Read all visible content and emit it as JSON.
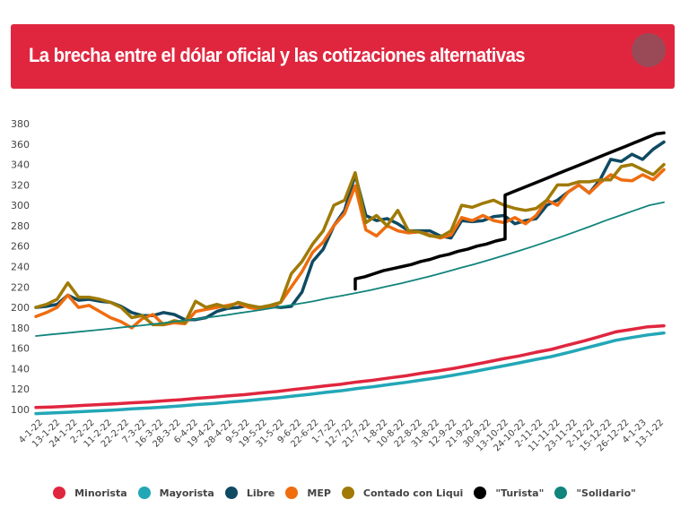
{
  "header": {
    "title": "La brecha entre el dólar oficial y las cotizaciones alternativas"
  },
  "colors": {
    "header_bg": "#e0263f",
    "header_circle": "#9a4a57"
  },
  "chart_data": {
    "type": "line",
    "title": "La brecha entre el dólar oficial y las cotizaciones alternativas",
    "xlabel": "",
    "ylabel": "",
    "ylim": [
      100,
      380
    ],
    "yticks": [
      100,
      120,
      140,
      160,
      180,
      200,
      220,
      240,
      260,
      280,
      300,
      320,
      340,
      360,
      380
    ],
    "grid": false,
    "legend_position": "bottom",
    "categories": [
      "4-1-22",
      "13-1-22",
      "24-1-22",
      "2-2-22",
      "11-2-22",
      "22-2-22",
      "7-3-22",
      "16-3-22",
      "28-3-22",
      "6-4-22",
      "19-4-22",
      "28-4-22",
      "9-5-22",
      "19-5-22",
      "31-5-22",
      "9-6-22",
      "22-6-22",
      "1-7-22",
      "12-7-22",
      "21-7-22",
      "1-8-22",
      "10-8-22",
      "22-8-22",
      "31-8-22",
      "12-9-22",
      "21-9-22",
      "30-9-22",
      "13-10-22",
      "24-10-22",
      "2-11-22",
      "11-11-22",
      "23-11-22",
      "2-12-22",
      "15-12-22",
      "26-12-22",
      "4-1-23",
      "13-1-22"
    ],
    "series": [
      {
        "name": "Minorista",
        "color": "#e0263f",
        "width": 3.5,
        "values": [
          102,
          102.5,
          103.2,
          104,
          104.8,
          105.6,
          106.6,
          107.4,
          108.6,
          109.6,
          111,
          112,
          113.4,
          114.6,
          116.2,
          117.6,
          119.6,
          121.2,
          123.2,
          124.8,
          127,
          128.8,
          131,
          133,
          135.6,
          137.8,
          140.4,
          143.4,
          146.4,
          149.6,
          152.4,
          155.8,
          158.8,
          163,
          167,
          171.4,
          176,
          178.5,
          181,
          182
        ]
      },
      {
        "name": "Mayorista",
        "color": "#22a7b7",
        "width": 3.5,
        "values": [
          96,
          96.6,
          97.3,
          98,
          98.8,
          99.6,
          100.6,
          101.4,
          102.5,
          103.5,
          104.8,
          105.8,
          107.2,
          108.4,
          110,
          111.4,
          113.2,
          114.8,
          116.8,
          118.4,
          120.6,
          122.4,
          124.6,
          126.6,
          129,
          131.2,
          133.8,
          136.6,
          139.6,
          142.6,
          145.6,
          148.8,
          151.8,
          155.6,
          159.6,
          163.6,
          167.8,
          170.5,
          173,
          175
        ]
      },
      {
        "name": "Libre",
        "color": "#0f4a63",
        "width": 3.5,
        "values": [
          200,
          201,
          203,
          212,
          207,
          208,
          206,
          205,
          201,
          195,
          192,
          192,
          195,
          193,
          188,
          188,
          190,
          196,
          199,
          200,
          202,
          200,
          201,
          200,
          201,
          215,
          245,
          257,
          280,
          295,
          330,
          290,
          285,
          287,
          282,
          275,
          275,
          275,
          270,
          268,
          285,
          284,
          285,
          289,
          290,
          282,
          285,
          287,
          300,
          305,
          313,
          320,
          312,
          325,
          345,
          343,
          350,
          345,
          355,
          362
        ]
      },
      {
        "name": "MEP",
        "color": "#ef6c0f",
        "width": 3.5,
        "values": [
          191,
          195,
          200,
          212,
          200,
          202,
          196,
          190,
          186,
          180,
          189,
          193,
          183,
          185,
          184,
          196,
          198,
          200,
          202,
          204,
          200,
          198,
          200,
          205,
          220,
          235,
          254,
          264,
          280,
          292,
          319,
          276,
          270,
          280,
          275,
          273,
          274,
          271,
          268,
          271,
          288,
          285,
          290,
          285,
          283,
          288,
          282,
          290,
          305,
          300,
          313,
          320,
          312,
          322,
          330,
          325,
          324,
          330,
          325,
          335
        ]
      },
      {
        "name": "Contado con Liqui",
        "color": "#a07a05",
        "width": 3.5,
        "values": [
          200,
          203,
          208,
          224,
          210,
          210,
          208,
          205,
          200,
          190,
          192,
          183,
          183,
          187,
          185,
          206,
          200,
          203,
          200,
          205,
          202,
          200,
          202,
          205,
          233,
          245,
          262,
          275,
          300,
          305,
          332,
          283,
          290,
          280,
          295,
          275,
          274,
          270,
          269,
          275,
          300,
          298,
          302,
          305,
          300,
          297,
          295,
          297,
          305,
          320,
          320,
          323,
          323,
          325,
          325,
          338,
          340,
          335,
          330,
          340
        ]
      },
      {
        "name": "\"Turista\"",
        "color": "#000000",
        "width": 3.5,
        "start_category_fraction": 0.509,
        "values": [
          218,
          228,
          230,
          233,
          236,
          238,
          240,
          242,
          245,
          247,
          250,
          252,
          255,
          257,
          260,
          262,
          265,
          267,
          310,
          313,
          316,
          319,
          322,
          325,
          328,
          331,
          334,
          337,
          340,
          343,
          346,
          349,
          352,
          355,
          358,
          361,
          364,
          367,
          370,
          371
        ]
      },
      {
        "name": "\"Solidario\"",
        "color": "#11847c",
        "width": 1.8,
        "values": [
          172,
          173.5,
          174.8,
          176.2,
          177.6,
          179,
          180.6,
          182,
          183.6,
          185.2,
          187,
          188.6,
          190.6,
          192.4,
          194.6,
          196.6,
          199,
          201.2,
          203.6,
          206,
          209,
          211.6,
          214.4,
          217.2,
          220.4,
          223.6,
          227,
          230.6,
          234.4,
          238.4,
          242.2,
          246.4,
          250.6,
          255,
          259.6,
          264.4,
          269.2,
          274.4,
          279.6,
          285,
          290,
          295,
          300,
          303
        ]
      }
    ],
    "annotations": []
  },
  "legend": {
    "items": [
      {
        "label": "Minorista",
        "color": "#e0263f"
      },
      {
        "label": "Mayorista",
        "color": "#22a7b7"
      },
      {
        "label": "Libre",
        "color": "#0f4a63"
      },
      {
        "label": "MEP",
        "color": "#ef6c0f"
      },
      {
        "label": "Contado con Liqui",
        "color": "#a07a05"
      },
      {
        "label": "\"Turista\"",
        "color": "#000000"
      },
      {
        "label": "\"Solidario\"",
        "color": "#11847c"
      }
    ]
  }
}
